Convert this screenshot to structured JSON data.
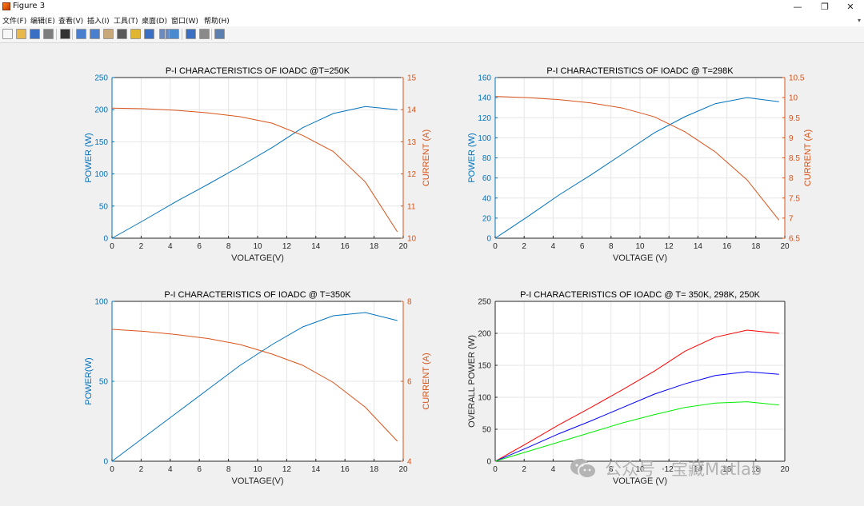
{
  "window": {
    "title": "Figure 3",
    "minimize_glyph": "—",
    "maximize_glyph": "❐",
    "close_glyph": "✕",
    "menu_arrow_glyph": "▾"
  },
  "menu": {
    "items": [
      "文件(F)",
      "编辑(E)",
      "查看(V)",
      "插入(I)",
      "工具(T)",
      "桌面(D)",
      "窗口(W)",
      "帮助(H)"
    ]
  },
  "toolbar": {
    "icons": [
      {
        "name": "new-figure-icon",
        "color": "#f7f7f7"
      },
      {
        "name": "open-file-icon",
        "color": "#e8b84a"
      },
      {
        "name": "save-icon",
        "color": "#3a6fc4"
      },
      {
        "name": "print-icon",
        "color": "#7d7d7d"
      },
      {
        "name": "select-pointer-icon",
        "color": "#333333"
      },
      {
        "name": "zoom-in-icon",
        "color": "#4a7fd0"
      },
      {
        "name": "zoom-out-icon",
        "color": "#4a7fd0"
      },
      {
        "name": "pan-hand-icon",
        "color": "#c9a97a"
      },
      {
        "name": "rotate-3d-icon",
        "color": "#5a5a5a"
      },
      {
        "name": "data-cursor-icon",
        "color": "#e0b530"
      },
      {
        "name": "brush-icon",
        "color": "#3a6fc4"
      },
      {
        "name": "link-plot-icon",
        "color": "#6a8ac0"
      },
      {
        "name": "colorbar-icon",
        "color": "#4a8bd0"
      },
      {
        "name": "legend-icon",
        "color": "#3a6fc4"
      },
      {
        "name": "hide-plot-tools-icon",
        "color": "#8a8a8a"
      },
      {
        "name": "show-plot-tools-icon",
        "color": "#5a7fb0"
      }
    ]
  },
  "watermark": {
    "text": "公众号 · 宝藏Matlab"
  },
  "colors": {
    "left_axis": "#0072BD",
    "right_axis": "#D95319",
    "red": "#ff0000",
    "blue": "#0000ff",
    "green": "#00ee00"
  },
  "chart_data": [
    {
      "type": "line",
      "title": "P-I CHARACTERISTICS OF IOADC @T=250K",
      "xlabel": "VOLATGE(V)",
      "ylabel": "POWER (W)",
      "ylabel_right": "CURRENT (A)",
      "xlim": [
        0,
        20
      ],
      "ylim": [
        0,
        250
      ],
      "ylim_right": [
        10,
        15
      ],
      "xticks": [
        0,
        2,
        4,
        6,
        8,
        10,
        12,
        14,
        16,
        18,
        20
      ],
      "yticks": [
        0,
        50,
        100,
        150,
        200,
        250
      ],
      "yticks_right": [
        10,
        11,
        12,
        13,
        14,
        15
      ],
      "grid": true,
      "series": [
        {
          "axis": "left",
          "color": "#0072BD",
          "x": [
            0,
            2.2,
            4.4,
            6.6,
            8.8,
            11,
            13.1,
            15.2,
            17.4,
            19.6
          ],
          "values": [
            0,
            28,
            57,
            84,
            112,
            141,
            172,
            194,
            205,
            200
          ]
        },
        {
          "axis": "right",
          "color": "#D95319",
          "x": [
            0,
            2.2,
            4.4,
            6.6,
            8.8,
            11,
            13.1,
            15.2,
            17.4,
            19.6
          ],
          "values": [
            14.05,
            14.03,
            13.98,
            13.9,
            13.78,
            13.58,
            13.2,
            12.7,
            11.75,
            10.2
          ]
        }
      ]
    },
    {
      "type": "line",
      "title": "P-I CHARACTERISTICS OF IOADC @ T=298K",
      "xlabel": "VOLTAGE (V)",
      "ylabel": "POWER (W)",
      "ylabel_right": "CURRENT (A)",
      "xlim": [
        0,
        20
      ],
      "ylim": [
        0,
        160
      ],
      "ylim_right": [
        6.5,
        10.5
      ],
      "xticks": [
        0,
        2,
        4,
        6,
        8,
        10,
        12,
        14,
        16,
        18,
        20
      ],
      "yticks": [
        0,
        20,
        40,
        60,
        80,
        100,
        120,
        140,
        160
      ],
      "yticks_right": [
        6.5,
        7,
        7.5,
        8,
        8.5,
        9,
        9.5,
        10,
        10.5
      ],
      "grid": true,
      "series": [
        {
          "axis": "left",
          "color": "#0072BD",
          "x": [
            0,
            2.2,
            4.4,
            6.6,
            8.8,
            11,
            13.1,
            15.2,
            17.4,
            19.6
          ],
          "values": [
            0,
            21,
            43,
            63,
            84,
            105,
            121,
            134,
            140,
            136
          ]
        },
        {
          "axis": "right",
          "color": "#D95319",
          "x": [
            0,
            2.2,
            4.4,
            6.6,
            8.8,
            11,
            13.1,
            15.2,
            17.4,
            19.6
          ],
          "values": [
            10.03,
            10.0,
            9.95,
            9.87,
            9.74,
            9.52,
            9.15,
            8.65,
            7.95,
            6.95
          ]
        }
      ]
    },
    {
      "type": "line",
      "title": "P-I CHARACTERISTICS OF IOADC @ T=350K",
      "xlabel": "VOLTAGE(V)",
      "ylabel": "POWER(W)",
      "ylabel_right": "CURRENT (A)",
      "xlim": [
        0,
        20
      ],
      "ylim": [
        0,
        100
      ],
      "ylim_right": [
        4,
        8
      ],
      "xticks": [
        0,
        2,
        4,
        6,
        8,
        10,
        12,
        14,
        16,
        18,
        20
      ],
      "yticks": [
        0,
        50,
        100
      ],
      "yticks_right": [
        4,
        6,
        8
      ],
      "grid": true,
      "series": [
        {
          "axis": "left",
          "color": "#0072BD",
          "x": [
            0,
            2.2,
            4.4,
            6.6,
            8.8,
            11,
            13.1,
            15.2,
            17.4,
            19.6
          ],
          "values": [
            0,
            15,
            30,
            45,
            60,
            73,
            84,
            91,
            93,
            88
          ]
        },
        {
          "axis": "right",
          "color": "#D95319",
          "x": [
            0,
            2.2,
            4.4,
            6.6,
            8.8,
            11,
            13.1,
            15.2,
            17.4,
            19.6
          ],
          "values": [
            7.3,
            7.25,
            7.17,
            7.07,
            6.92,
            6.68,
            6.4,
            5.97,
            5.35,
            4.5
          ]
        }
      ]
    },
    {
      "type": "line",
      "title": "P-I CHARACTERISTICS OF IOADC @ T= 350K, 298K, 250K",
      "xlabel": "VOLTAGE (V)",
      "ylabel": "OVERALL POWER (W)",
      "ylabel_right": "",
      "xlim": [
        0,
        20
      ],
      "ylim": [
        0,
        250
      ],
      "xticks": [
        0,
        2,
        4,
        6,
        8,
        10,
        12,
        14,
        16,
        18,
        20
      ],
      "yticks": [
        0,
        50,
        100,
        150,
        200,
        250
      ],
      "grid": true,
      "series": [
        {
          "axis": "left",
          "color": "#ff0000",
          "x": [
            0,
            2.2,
            4.4,
            6.6,
            8.8,
            11,
            13.1,
            15.2,
            17.4,
            19.6
          ],
          "values": [
            0,
            28,
            57,
            84,
            112,
            141,
            172,
            194,
            205,
            200
          ]
        },
        {
          "axis": "left",
          "color": "#0000ff",
          "x": [
            0,
            2.2,
            4.4,
            6.6,
            8.8,
            11,
            13.1,
            15.2,
            17.4,
            19.6
          ],
          "values": [
            0,
            21,
            43,
            63,
            84,
            105,
            121,
            134,
            140,
            136
          ]
        },
        {
          "axis": "left",
          "color": "#00ee00",
          "x": [
            0,
            2.2,
            4.4,
            6.6,
            8.8,
            11,
            13.1,
            15.2,
            17.4,
            19.6
          ],
          "values": [
            0,
            15,
            30,
            45,
            60,
            73,
            84,
            91,
            93,
            88
          ]
        }
      ]
    }
  ]
}
